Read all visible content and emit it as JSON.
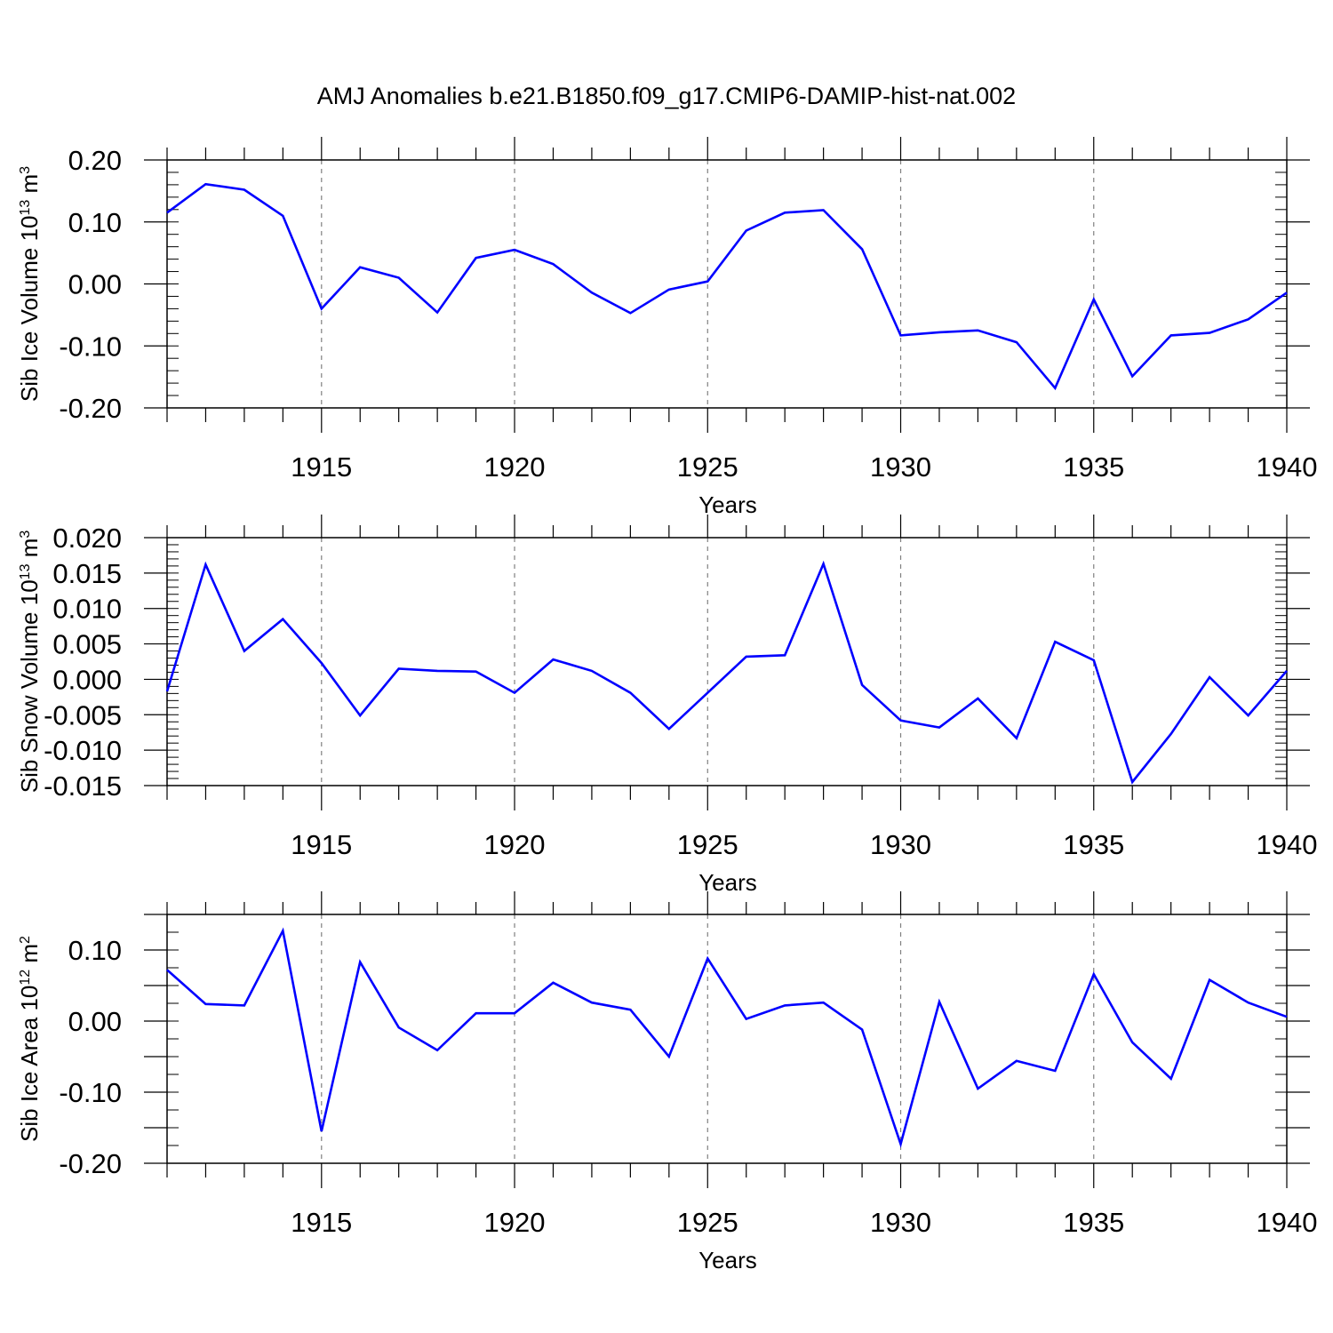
{
  "figure_title": "AMJ Anomalies b.e21.B1850.f09_g17.CMIP6-DAMIP-hist-nat.002",
  "colors": {
    "series": "#0000ff",
    "axes": "#000000",
    "gridline": "#808080"
  },
  "chart_data": [
    {
      "type": "line",
      "title": "AMJ Anomalies b.e21.B1850.f09_g17.CMIP6-DAMIP-hist-nat.002",
      "xlabel": "Years",
      "ylabel": "Sib Ice Volume 10",
      "ylabel_exp": "13",
      "ylabel_unit": "m",
      "ylabel_unit_exp": "3",
      "xlim": [
        1911,
        1940
      ],
      "ylim": [
        -0.2,
        0.2
      ],
      "xticks": [
        1915,
        1920,
        1925,
        1930,
        1935,
        1940
      ],
      "yticks": [
        -0.2,
        -0.1,
        0.0,
        0.1,
        0.2
      ],
      "ytick_labels": [
        "-0.20",
        "-0.10",
        "0.00",
        "0.10",
        "0.20"
      ],
      "ymajor_step": 0.1,
      "yminor_step": 0.02,
      "vertical_gridlines": [
        1915,
        1920,
        1925,
        1930,
        1935
      ],
      "x": [
        1911,
        1912,
        1913,
        1914,
        1915,
        1916,
        1917,
        1918,
        1919,
        1920,
        1921,
        1922,
        1923,
        1924,
        1925,
        1926,
        1927,
        1928,
        1929,
        1930,
        1931,
        1932,
        1933,
        1934,
        1935,
        1936,
        1937,
        1938,
        1939,
        1940
      ],
      "values": [
        0.115,
        0.161,
        0.152,
        0.11,
        -0.04,
        0.027,
        0.01,
        -0.046,
        0.042,
        0.055,
        0.032,
        -0.014,
        -0.047,
        -0.009,
        0.004,
        0.086,
        0.115,
        0.119,
        0.056,
        -0.083,
        -0.078,
        -0.075,
        -0.094,
        -0.168,
        -0.025,
        -0.149,
        -0.083,
        -0.079,
        -0.057,
        -0.014
      ]
    },
    {
      "type": "line",
      "xlabel": "Years",
      "ylabel": "Sib Snow Volume 10",
      "ylabel_exp": "13",
      "ylabel_unit": "m",
      "ylabel_unit_exp": "3",
      "xlim": [
        1911,
        1940
      ],
      "ylim": [
        -0.015,
        0.02
      ],
      "xticks": [
        1915,
        1920,
        1925,
        1930,
        1935,
        1940
      ],
      "yticks": [
        -0.015,
        -0.01,
        -0.005,
        0.0,
        0.005,
        0.01,
        0.015,
        0.02
      ],
      "ytick_labels": [
        "-0.015",
        "-0.010",
        "-0.005",
        "0.000",
        "0.005",
        "0.010",
        "0.015",
        "0.020"
      ],
      "ymajor_step": 0.005,
      "yminor_step": 0.001,
      "vertical_gridlines": [
        1915,
        1920,
        1925,
        1930,
        1935
      ],
      "x": [
        1911,
        1912,
        1913,
        1914,
        1915,
        1916,
        1917,
        1918,
        1919,
        1920,
        1921,
        1922,
        1923,
        1924,
        1925,
        1926,
        1927,
        1928,
        1929,
        1930,
        1931,
        1932,
        1933,
        1934,
        1935,
        1936,
        1937,
        1938,
        1939,
        1940
      ],
      "values": [
        -0.0017,
        0.0162,
        0.004,
        0.0085,
        0.0023,
        -0.0051,
        0.0015,
        0.0012,
        0.0011,
        -0.0019,
        0.0028,
        0.0012,
        -0.0019,
        -0.007,
        -0.0019,
        0.0032,
        0.0034,
        0.0163,
        -0.0008,
        -0.0058,
        -0.0068,
        -0.0027,
        -0.0083,
        0.0053,
        0.0027,
        -0.0145,
        -0.0077,
        0.0003,
        -0.0051,
        0.0012
      ]
    },
    {
      "type": "line",
      "xlabel": "Years",
      "ylabel": "Sib Ice Area 10",
      "ylabel_exp": "12",
      "ylabel_unit": "m",
      "ylabel_unit_exp": "2",
      "xlim": [
        1911,
        1940
      ],
      "ylim": [
        -0.2,
        0.15
      ],
      "xticks": [
        1915,
        1920,
        1925,
        1930,
        1935,
        1940
      ],
      "yticks": [
        -0.2,
        -0.1,
        0.0,
        0.1
      ],
      "ytick_labels": [
        "-0.20",
        "-0.10",
        "0.00",
        "0.10"
      ],
      "ymajor_step": 0.05,
      "yminor_step": 0.025,
      "vertical_gridlines": [
        1915,
        1920,
        1925,
        1930,
        1935
      ],
      "x": [
        1911,
        1912,
        1913,
        1914,
        1915,
        1916,
        1917,
        1918,
        1919,
        1920,
        1921,
        1922,
        1923,
        1924,
        1925,
        1926,
        1927,
        1928,
        1929,
        1930,
        1931,
        1932,
        1933,
        1934,
        1935,
        1936,
        1937,
        1938,
        1939,
        1940
      ],
      "values": [
        0.072,
        0.024,
        0.022,
        0.127,
        -0.155,
        0.083,
        -0.009,
        -0.041,
        0.011,
        0.011,
        0.054,
        0.026,
        0.016,
        -0.05,
        0.088,
        0.003,
        0.022,
        0.026,
        -0.012,
        -0.173,
        0.027,
        -0.095,
        -0.056,
        -0.07,
        0.066,
        -0.03,
        -0.081,
        0.058,
        0.026,
        0.006
      ]
    }
  ]
}
